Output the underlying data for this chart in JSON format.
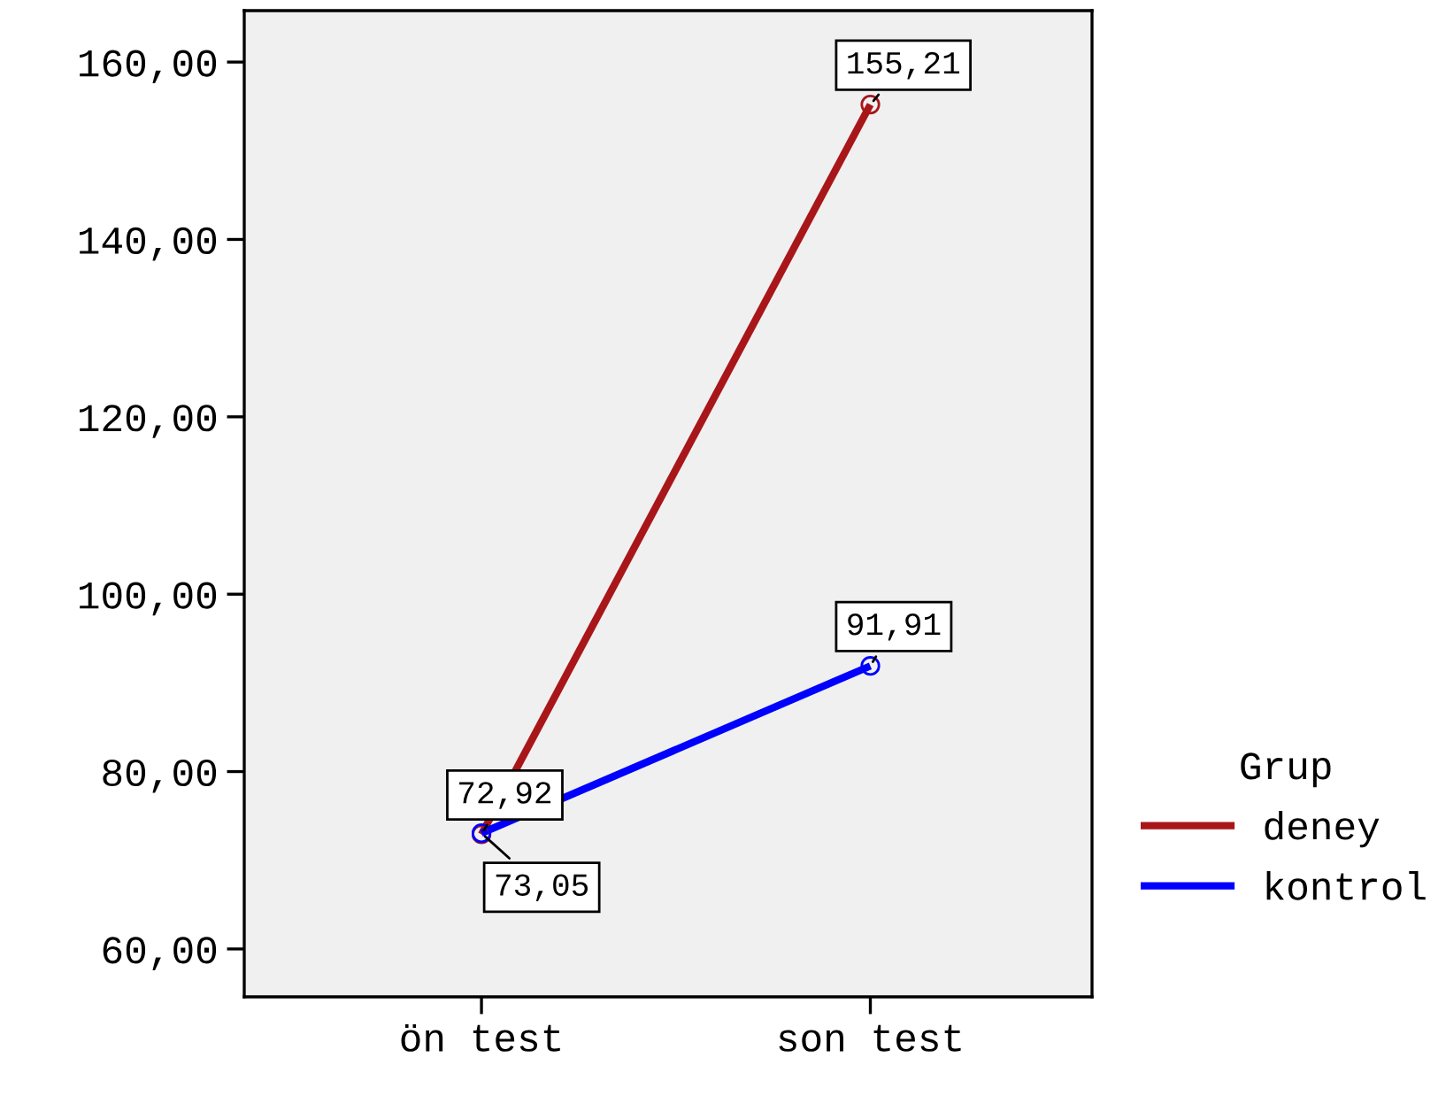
{
  "chart_data": {
    "type": "line",
    "categories": [
      "ön test",
      "son test"
    ],
    "series": [
      {
        "name": "deney",
        "color": "#a8161a",
        "values": [
          72.92,
          155.21
        ],
        "value_labels": [
          "72,92",
          "155,21"
        ]
      },
      {
        "name": "kontrol",
        "color": "#0000ff",
        "values": [
          73.05,
          91.91
        ],
        "value_labels": [
          "73,05",
          "91,91"
        ]
      }
    ],
    "legend_title": "Grup",
    "legend": "right",
    "marker": "circle",
    "grid": false,
    "ylim": [
      54.6,
      165.8
    ],
    "yticks": [
      {
        "value": 60,
        "label": "60,00"
      },
      {
        "value": 80,
        "label": "80,00"
      },
      {
        "value": 100,
        "label": "100,00"
      },
      {
        "value": 120,
        "label": "120,00"
      },
      {
        "value": 140,
        "label": "140,00"
      },
      {
        "value": 160,
        "label": "160,00"
      }
    ]
  }
}
